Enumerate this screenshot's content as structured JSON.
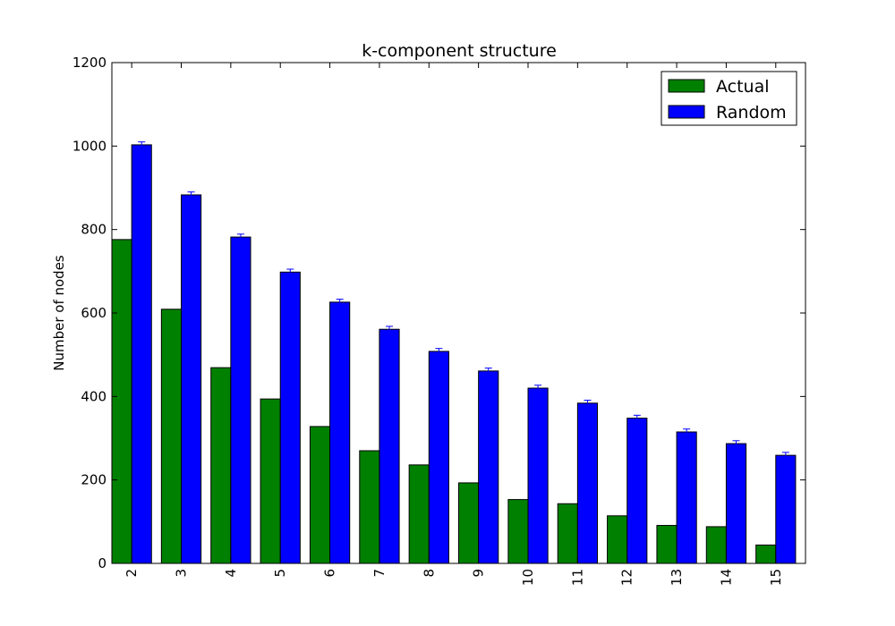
{
  "chart_data": {
    "type": "bar",
    "title": "k-component structure",
    "xlabel": "",
    "ylabel": "Number of nodes",
    "ylim": [
      0,
      1200
    ],
    "yticks": [
      "0",
      "200",
      "400",
      "600",
      "800",
      "1000",
      "1200"
    ],
    "categories": [
      "2",
      "3",
      "4",
      "5",
      "6",
      "7",
      "8",
      "9",
      "10",
      "11",
      "12",
      "13",
      "14",
      "15"
    ],
    "series": [
      {
        "name": "Actual",
        "color": "#008000",
        "values": [
          776,
          609,
          469,
          394,
          328,
          270,
          236,
          193,
          153,
          143,
          114,
          91,
          88,
          44
        ]
      },
      {
        "name": "Random",
        "color": "#0000ff",
        "values": [
          1003,
          883,
          782,
          698,
          626,
          561,
          508,
          461,
          420,
          384,
          348,
          315,
          287,
          259
        ],
        "errors": [
          7,
          7,
          7,
          7,
          7,
          7,
          7,
          7,
          7,
          7,
          7,
          7,
          7,
          7
        ]
      }
    ],
    "legend_position": "top-right",
    "grid": false
  }
}
